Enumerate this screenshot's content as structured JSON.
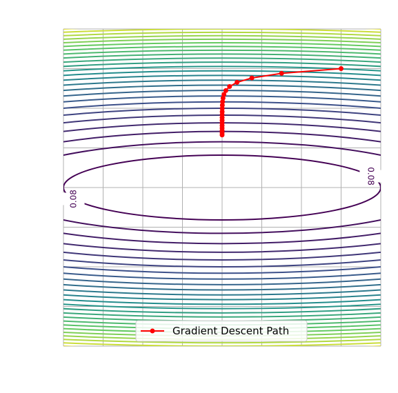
{
  "chart_data": {
    "type": "contour",
    "title": "",
    "xlabel": "",
    "ylabel": "",
    "xlim": [
      -2,
      2
    ],
    "ylim": [
      -2,
      2
    ],
    "grid": true,
    "axes_visible": false,
    "function": "z = 0.02*x^2 + 0.48*y^2",
    "colormap": "viridis",
    "contour_levels": [
      "0.08",
      "0.16",
      "0.24",
      "0.32",
      "0.40",
      "0.48",
      "0.56",
      "0.64",
      "0.72",
      "0.80",
      "0.88",
      "0.96",
      "1.04",
      "1.12",
      "1.20",
      "1.28",
      "1.36",
      "1.44",
      "1.52",
      "1.60",
      "1.68",
      "1.76",
      "1.84",
      "1.92",
      "2.00",
      "2.08"
    ],
    "series": [
      {
        "name": "Gradient Descent Path",
        "color": "#ff0000",
        "marker": "o",
        "x": [
          1.5,
          0.75,
          0.375,
          0.188,
          0.094,
          0.047,
          0.023,
          0.012,
          0.006,
          0.003,
          0.0015,
          0.0008,
          0.0004,
          0.0002,
          0.0001,
          0.0,
          0.0,
          0.0,
          0.0,
          0.0,
          0.0
        ],
        "y": [
          1.5,
          1.44,
          1.382,
          1.327,
          1.274,
          1.223,
          1.174,
          1.127,
          1.082,
          1.039,
          0.997,
          0.957,
          0.919,
          0.882,
          0.847,
          0.813,
          0.781,
          0.749,
          0.719,
          0.691,
          0.663
        ]
      }
    ],
    "legend": {
      "position": "bottom-center",
      "entries": [
        "Gradient Descent Path"
      ]
    }
  }
}
